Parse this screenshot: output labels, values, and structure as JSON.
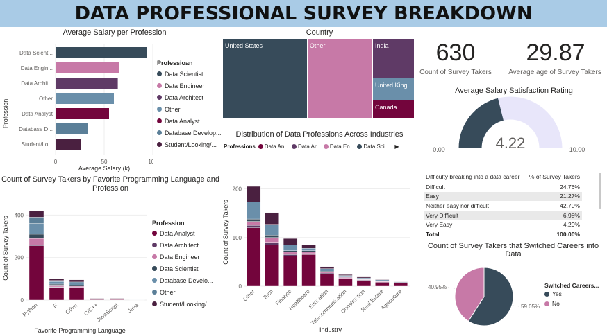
{
  "page": {
    "title": "DATA PROFESSIONAL SURVEY BREAKDOWN"
  },
  "colors": {
    "data_scientist": "#374b5a",
    "data_engineer": "#c779a7",
    "data_architect": "#5f3a66",
    "other": "#6a8faa",
    "data_analyst": "#73053c",
    "database_developer": "#5b7f98",
    "student": "#4a2040",
    "gauge_fill": "#374b5a",
    "gauge_track": "#e8e6fa",
    "title_bar": "#a9cbe6"
  },
  "kpis": {
    "count": {
      "value": "630",
      "label": "Count of Survey Takers"
    },
    "avg_age": {
      "value": "29.87",
      "label": "Average age of Survey Takers"
    }
  },
  "chart_data": [
    {
      "id": "salary",
      "type": "bar",
      "orientation": "horizontal",
      "title": "Average Salary per Profession",
      "xlabel": "Average Salary (k)",
      "ylabel": "Profession",
      "xlim": [
        0,
        100
      ],
      "xticks": [
        "0",
        "50",
        "100"
      ],
      "categories": [
        "Data Scient...",
        "Data Engin...",
        "Data Archit...",
        "Other",
        "Data Analyst",
        "Database D...",
        "Student/Lo..."
      ],
      "values": [
        94,
        65,
        64,
        60,
        55,
        33,
        26
      ],
      "color_keys": [
        "data_scientist",
        "data_engineer",
        "data_architect",
        "other",
        "data_analyst",
        "database_developer",
        "student"
      ],
      "legend": {
        "title": "Professioan",
        "items": [
          "Data Scientist",
          "Data Engineer",
          "Data Architect",
          "Other",
          "Data Analyst",
          "Database Develop...",
          "Student/Looking/..."
        ],
        "color_keys": [
          "data_scientist",
          "data_engineer",
          "data_architect",
          "other",
          "data_analyst",
          "database_developer",
          "student"
        ],
        "position": "right"
      }
    },
    {
      "id": "country",
      "type": "treemap",
      "title": "Country",
      "items": [
        {
          "label": "United States",
          "value": 260,
          "color_key": "data_scientist"
        },
        {
          "label": "Other",
          "value": 201,
          "color_key": "data_engineer"
        },
        {
          "label": "India",
          "value": 63,
          "color_key": "data_architect"
        },
        {
          "label": "United King...",
          "value": 36,
          "color_key": "other"
        },
        {
          "label": "Canada",
          "value": 29,
          "color_key": "data_analyst"
        }
      ]
    },
    {
      "id": "gauge",
      "type": "gauge",
      "title": "Average Salary Satisfaction Rating",
      "value": 4.22,
      "value_label": "4.22",
      "min": 0,
      "max": 10,
      "min_label": "0.00",
      "max_label": "10.00"
    },
    {
      "id": "industry_legend",
      "type": "legend",
      "title": "Distribution of Data Professions Across Industries",
      "legend_title": "Professions",
      "items": [
        "Data An...",
        "Data Ar...",
        "Data En...",
        "Data Sci..."
      ],
      "color_keys": [
        "data_analyst",
        "data_architect",
        "data_engineer",
        "data_scientist"
      ],
      "more_icon": "triangle-right-icon"
    },
    {
      "id": "language",
      "type": "bar",
      "stacked": true,
      "title": "Count of Survey Takers by Favorite Programming Language and Profession",
      "xlabel": "Favorite Programming Language",
      "ylabel": "Count of Survey Takers",
      "ylim": [
        0,
        450
      ],
      "yticks": [
        0,
        200,
        400
      ],
      "categories": [
        "Python",
        "R",
        "Other",
        "C/C++",
        "JavaScript",
        "Java"
      ],
      "series": [
        {
          "name": "Data Analyst",
          "color_key": "data_analyst",
          "values": [
            255,
            60,
            58,
            3,
            3,
            1
          ]
        },
        {
          "name": "Data Architect",
          "color_key": "data_architect",
          "values": [
            5,
            2,
            2,
            0,
            0,
            0
          ]
        },
        {
          "name": "Data Engineer",
          "color_key": "data_engineer",
          "values": [
            30,
            5,
            5,
            0,
            1,
            0
          ]
        },
        {
          "name": "Data Scientist",
          "color_key": "data_scientist",
          "values": [
            20,
            8,
            5,
            1,
            0,
            0
          ]
        },
        {
          "name": "Database Develo...",
          "color_key": "other",
          "values": [
            50,
            12,
            10,
            2,
            1,
            1
          ]
        },
        {
          "name": "Other",
          "color_key": "database_developer",
          "values": [
            30,
            5,
            5,
            1,
            1,
            1
          ]
        },
        {
          "name": "Student/Looking/...",
          "color_key": "student",
          "values": [
            30,
            8,
            10,
            2,
            2,
            0
          ]
        }
      ],
      "legend": {
        "title": "Profession",
        "items": [
          "Data Analyst",
          "Data Architect",
          "Data Engineer",
          "Data Scientist",
          "Database Develo...",
          "Other",
          "Student/Looking/..."
        ],
        "color_keys": [
          "data_analyst",
          "data_architect",
          "data_engineer",
          "data_scientist",
          "other",
          "database_developer",
          "student"
        ],
        "position": "right"
      }
    },
    {
      "id": "industry",
      "type": "bar",
      "stacked": true,
      "xlabel": "Industry",
      "ylabel": "Count of Survey Takers",
      "ylim": [
        0,
        215
      ],
      "yticks": [
        0,
        100,
        200
      ],
      "categories": [
        "Other",
        "Tech",
        "Finance",
        "Healthcare",
        "Education",
        "Telecommunication",
        "Construction",
        "Real Estate",
        "Agriculture"
      ],
      "series": [
        {
          "name": "Data Analyst",
          "color_key": "data_analyst",
          "values": [
            120,
            85,
            62,
            65,
            25,
            15,
            12,
            8,
            6
          ]
        },
        {
          "name": "Data Architect",
          "color_key": "data_architect",
          "values": [
            5,
            5,
            3,
            2,
            2,
            1,
            1,
            1,
            0
          ]
        },
        {
          "name": "Data Engineer",
          "color_key": "data_engineer",
          "values": [
            8,
            10,
            5,
            3,
            2,
            2,
            1,
            1,
            1
          ]
        },
        {
          "name": "Data Scientist",
          "color_key": "data_scientist",
          "values": [
            5,
            5,
            3,
            3,
            2,
            1,
            1,
            1,
            0
          ]
        },
        {
          "name": "Database Developer",
          "color_key": "other",
          "values": [
            35,
            22,
            12,
            5,
            5,
            3,
            2,
            2,
            1
          ]
        },
        {
          "name": "Student/Looking",
          "color_key": "student",
          "values": [
            32,
            24,
            13,
            7,
            4,
            2,
            2,
            1,
            1
          ]
        }
      ]
    },
    {
      "id": "difficulty",
      "type": "table",
      "columns": [
        "Difficulty breaking into a data career",
        "% of Survey Takers"
      ],
      "rows": [
        [
          "Difficult",
          "24.76%"
        ],
        [
          "Easy",
          "21.27%"
        ],
        [
          "Neither easy nor difficult",
          "42.70%"
        ],
        [
          "Very Difficult",
          "6.98%"
        ],
        [
          "Very Easy",
          "4.29%"
        ]
      ],
      "total": [
        "Total",
        "100.00%"
      ]
    },
    {
      "id": "switched",
      "type": "pie",
      "title": "Count of Survey Takers that Switched Careers into Data",
      "slices": [
        {
          "label": "Yes",
          "value": 59.05,
          "value_label": "59.05%",
          "color_key": "data_scientist"
        },
        {
          "label": "No",
          "value": 40.95,
          "value_label": "40.95%",
          "color_key": "data_engineer"
        }
      ],
      "legend": {
        "title": "Switched Careers...",
        "items": [
          "Yes",
          "No"
        ],
        "position": "right"
      }
    }
  ]
}
